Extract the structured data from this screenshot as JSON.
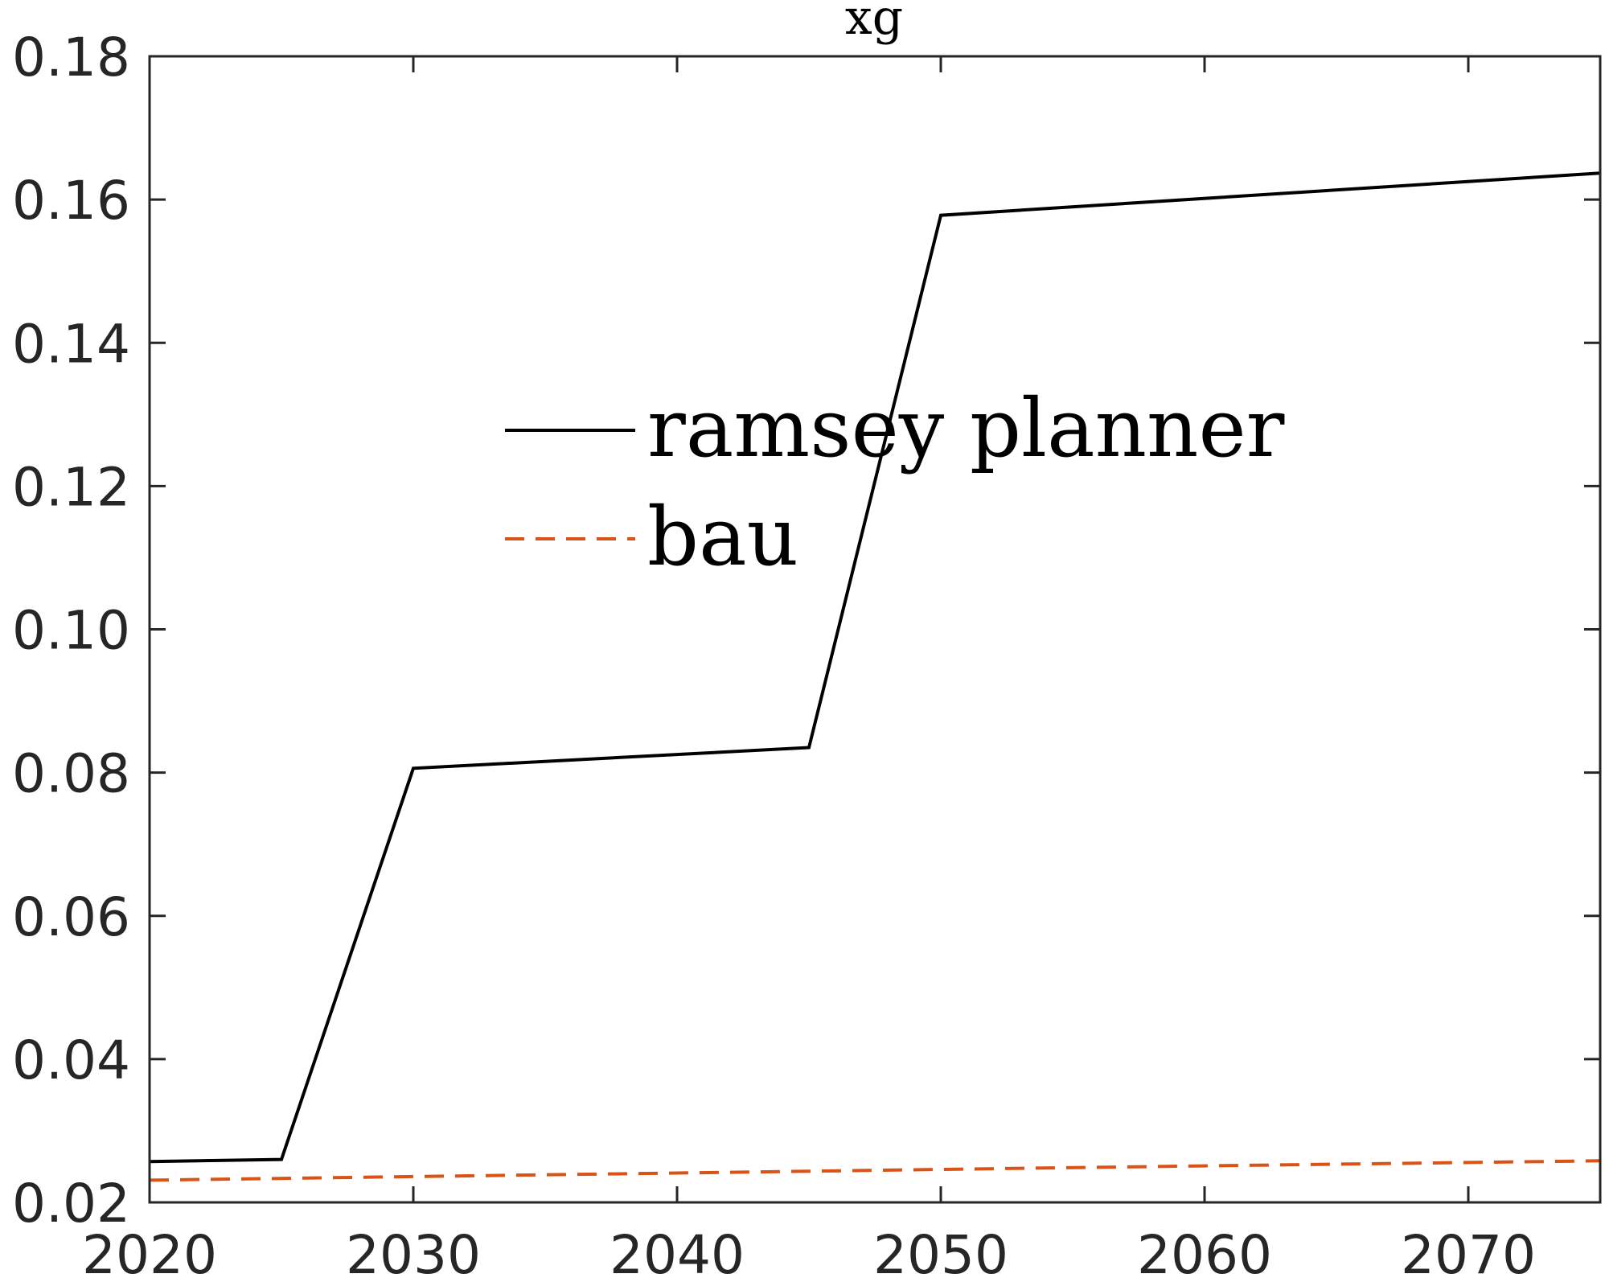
{
  "chart_data": {
    "type": "line",
    "title": "xg",
    "xlabel": "",
    "ylabel": "",
    "xlim": [
      2020,
      2075
    ],
    "ylim": [
      0.02,
      0.18
    ],
    "xticks": [
      2020,
      2030,
      2040,
      2050,
      2060,
      2070
    ],
    "xtick_labels": [
      "2020",
      "2030",
      "2040",
      "2050",
      "2060",
      "2070"
    ],
    "yticks": [
      0.02,
      0.04,
      0.06,
      0.08,
      0.1,
      0.12,
      0.14,
      0.16,
      0.18
    ],
    "ytick_labels": [
      "0.02",
      "0.04",
      "0.06",
      "0.08",
      "0.10",
      "0.12",
      "0.14",
      "0.16",
      "0.18"
    ],
    "grid": false,
    "legend_position": "center",
    "series": [
      {
        "name": "ramsey planner",
        "color": "#000000",
        "style": "solid",
        "x": [
          2020,
          2025,
          2030,
          2045,
          2050,
          2075
        ],
        "y": [
          0.0257,
          0.026,
          0.0806,
          0.0835,
          0.1578,
          0.1637
        ]
      },
      {
        "name": "bau",
        "color": "#D95319",
        "style": "dashed",
        "x": [
          2020,
          2030,
          2040,
          2050,
          2060,
          2075
        ],
        "y": [
          0.0231,
          0.0236,
          0.0241,
          0.0246,
          0.0251,
          0.0258
        ]
      }
    ]
  }
}
